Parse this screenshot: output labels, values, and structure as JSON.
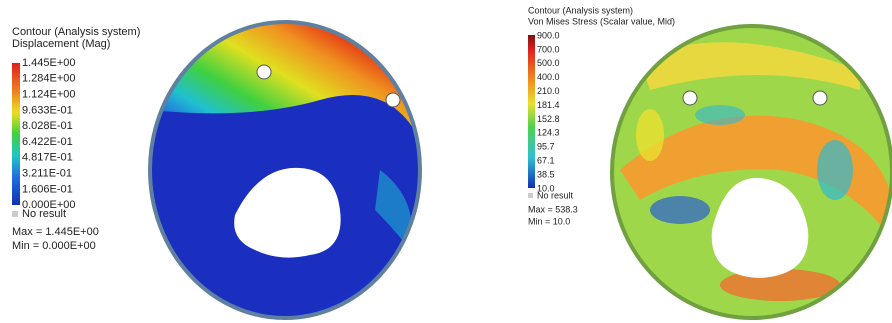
{
  "panels": [
    {
      "title": [
        "Contour (Analysis system)",
        "Displacement (Mag)"
      ],
      "levels": [
        "1.445E+00",
        "1.284E+00",
        "1.124E+00",
        "9.633E-01",
        "8.028E-01",
        "6.422E-01",
        "4.817E-01",
        "3.211E-01",
        "1.606E-01",
        "0.000E+00"
      ],
      "no_result": "No result",
      "max": "Max =  1.445E+00",
      "min": "Min =  0.000E+00"
    },
    {
      "title": [
        "Contour (Analysis system)",
        "Von Mises Stress (Scalar value, Mid)"
      ],
      "levels": [
        "900.0",
        "700.0",
        "500.0",
        "400.0",
        "210.0",
        "181.4",
        "152.8",
        "124.3",
        "95.7",
        "67.1",
        "38.5",
        "10.0"
      ],
      "no_result": "No result",
      "max": "Max = 538.3",
      "min": "Min = 10.0"
    }
  ]
}
